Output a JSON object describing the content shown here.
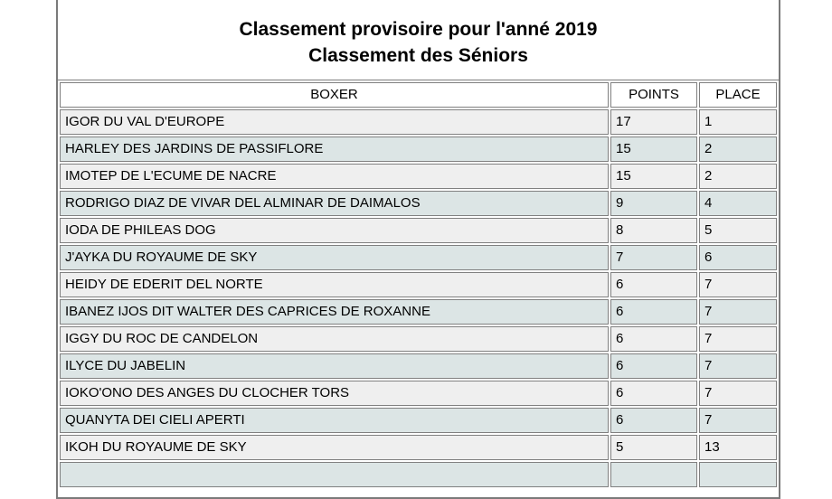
{
  "title": {
    "line1": "Classement provisoire pour l'anné 2019",
    "line2": "Classement des Séniors"
  },
  "table": {
    "headers": [
      "BOXER",
      "POINTS",
      "PLACE"
    ],
    "rows": [
      {
        "boxer": "IGOR DU VAL D'EUROPE",
        "points": "17",
        "place": "1"
      },
      {
        "boxer": "HARLEY DES JARDINS DE PASSIFLORE",
        "points": "15",
        "place": "2"
      },
      {
        "boxer": "IMOTEP DE L'ECUME DE NACRE",
        "points": "15",
        "place": "2"
      },
      {
        "boxer": "RODRIGO DIAZ DE VIVAR DEL ALMINAR DE DAIMALOS",
        "points": "9",
        "place": "4"
      },
      {
        "boxer": "IODA DE PHILEAS DOG",
        "points": "8",
        "place": "5"
      },
      {
        "boxer": "J'AYKA DU ROYAUME DE SKY",
        "points": "7",
        "place": "6"
      },
      {
        "boxer": "HEIDY DE EDERIT DEL NORTE",
        "points": "6",
        "place": "7"
      },
      {
        "boxer": "IBANEZ IJOS DIT WALTER DES CAPRICES DE ROXANNE",
        "points": "6",
        "place": "7"
      },
      {
        "boxer": "IGGY DU ROC DE CANDELON",
        "points": "6",
        "place": "7"
      },
      {
        "boxer": "ILYCE DU JABELIN",
        "points": "6",
        "place": "7"
      },
      {
        "boxer": "IOKO'ONO DES ANGES DU CLOCHER TORS",
        "points": "6",
        "place": "7"
      },
      {
        "boxer": "QUANYTA DEI CIELI APERTI",
        "points": "6",
        "place": "7"
      },
      {
        "boxer": "IKOH DU ROYAUME DE SKY",
        "points": "5",
        "place": "13"
      }
    ],
    "colors": {
      "row_odd": "#efefef",
      "row_even": "#dce5e5",
      "cell_border": "#808080",
      "header_bg": "#ffffff",
      "panel_border": "#7a7a7a",
      "text": "#000000"
    }
  }
}
